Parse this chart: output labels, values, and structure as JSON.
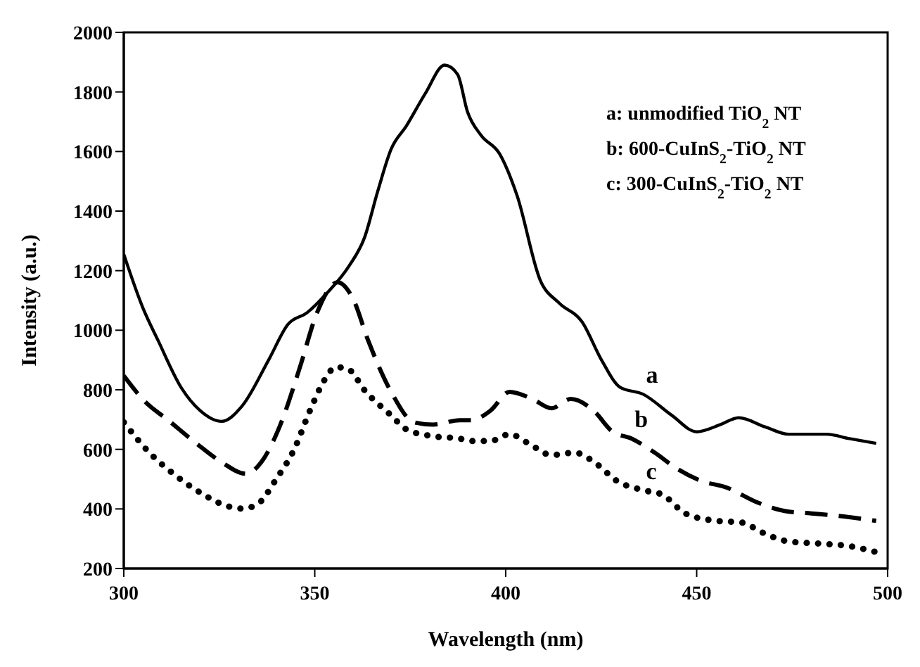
{
  "chart_data": {
    "type": "line",
    "xlabel": "Wavelength (nm)",
    "ylabel": "Intensity (a.u.)",
    "xlim": [
      300,
      500
    ],
    "xticks": [
      300,
      350,
      400,
      450,
      500
    ],
    "ylim": [
      200,
      2000
    ],
    "yticks": [
      200,
      400,
      600,
      800,
      1000,
      1200,
      1400,
      1600,
      1800,
      2000
    ],
    "marker": "none",
    "series": [
      {
        "name": "a",
        "color": "#000000",
        "line_style": "solid",
        "x": [
          300,
          305,
          309,
          315,
          320,
          325.6,
          331,
          338,
          343,
          348,
          353,
          359,
          363,
          366.5,
          370,
          374,
          379,
          384,
          387.4,
          390,
          393.5,
          398.4,
          403,
          409,
          414,
          420,
          425,
          430,
          436,
          443.5,
          450,
          456,
          461,
          468,
          474,
          484,
          490,
          497
        ],
        "values": [
          1255,
          1075,
          965,
          808,
          730,
          694,
          746,
          902,
          1020,
          1059,
          1122,
          1216,
          1310,
          1467,
          1608,
          1686,
          1796,
          1890,
          1859,
          1733,
          1655,
          1592,
          1451,
          1169,
          1091,
          1028,
          902,
          808,
          785,
          714,
          659,
          682,
          706,
          675,
          651,
          651,
          636,
          620
        ]
      },
      {
        "name": "b",
        "color": "#000000",
        "line_style": "dashed",
        "x": [
          300,
          305.5,
          311.6,
          319,
          325.6,
          332,
          336,
          341,
          346,
          350.6,
          356,
          360,
          364,
          370,
          376,
          381,
          388,
          391,
          396,
          401,
          407,
          412,
          417,
          423,
          428,
          433,
          439,
          445,
          451,
          458,
          465.5,
          473,
          480,
          487,
          497
        ],
        "values": [
          847,
          761,
          698,
          620,
          557,
          518,
          557,
          683,
          871,
          1059,
          1161,
          1106,
          965,
          793,
          691,
          683,
          698,
          698,
          730,
          793,
          769,
          738,
          769,
          730,
          659,
          636,
          589,
          534,
          495,
          471,
          424,
          393,
          385,
          377,
          360
        ]
      },
      {
        "name": "c",
        "color": "#000000",
        "line_style": "dotted",
        "x": [
          300,
          306.7,
          313,
          320,
          327.5,
          331,
          335,
          340,
          344.5,
          349,
          352.5,
          355.5,
          358.5,
          363.4,
          370,
          374,
          381,
          388,
          391,
          396,
          401,
          406,
          412,
          418,
          424,
          429,
          436,
          441,
          447,
          454.5,
          462,
          467,
          474,
          483,
          490,
          497
        ],
        "values": [
          691,
          589,
          518,
          455,
          408,
          401,
          416,
          502,
          597,
          738,
          832,
          876,
          871,
          793,
          714,
          667,
          644,
          636,
          628,
          628,
          651,
          620,
          581,
          589,
          549,
          495,
          463,
          448,
          385,
          361,
          354,
          322,
          291,
          283,
          275,
          255
        ]
      }
    ],
    "annotations": [
      "a: unmodified TiO$_{2}$ NT",
      "b: 600-CuInS$_{2}$-TiO$_{2}$ NT",
      "c: 300-CuInS$_{2}$-TiO$_{2}$ NT"
    ]
  }
}
